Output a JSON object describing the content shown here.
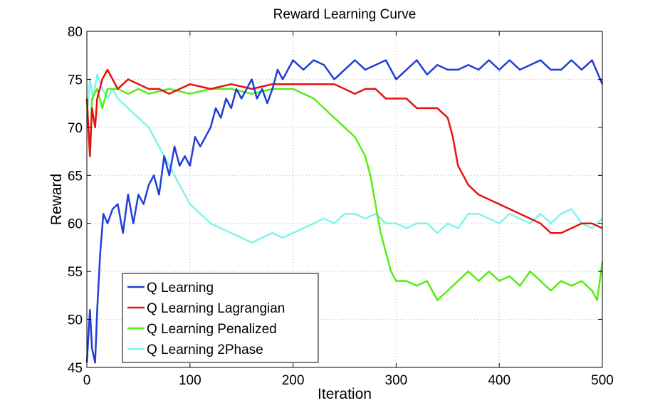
{
  "chart_data": {
    "type": "line",
    "title": "Reward Learning Curve",
    "xlabel": "Iteration",
    "ylabel": "Reward",
    "xlim": [
      0,
      500
    ],
    "ylim": [
      45,
      80
    ],
    "xticks": [
      0,
      100,
      200,
      300,
      400,
      500
    ],
    "yticks": [
      45,
      50,
      55,
      60,
      65,
      70,
      75,
      80
    ],
    "grid": true,
    "legend_position": "bottom-left",
    "series": [
      {
        "name": "Q Learning",
        "color": "#1f3fd6",
        "x": [
          0,
          3,
          5,
          8,
          10,
          13,
          16,
          20,
          25,
          30,
          35,
          40,
          45,
          50,
          55,
          60,
          65,
          70,
          75,
          80,
          85,
          90,
          95,
          100,
          105,
          110,
          115,
          120,
          125,
          130,
          135,
          140,
          145,
          150,
          155,
          160,
          165,
          170,
          175,
          180,
          185,
          190,
          195,
          200,
          210,
          220,
          230,
          240,
          250,
          260,
          270,
          280,
          290,
          300,
          310,
          320,
          330,
          340,
          350,
          360,
          370,
          380,
          390,
          400,
          410,
          420,
          430,
          440,
          450,
          460,
          470,
          480,
          490,
          500
        ],
        "y": [
          45.5,
          51,
          47,
          45.5,
          51,
          57,
          61,
          60,
          61.5,
          62,
          59,
          63,
          60,
          63,
          62,
          64,
          65,
          63,
          67,
          65,
          68,
          66,
          67,
          66,
          69,
          68,
          69,
          70,
          72,
          71,
          73,
          72,
          74,
          73,
          74,
          75,
          73,
          74,
          72.5,
          74,
          76,
          75,
          76,
          77,
          76,
          77,
          76.5,
          75,
          76,
          77,
          76,
          76.5,
          77,
          75,
          76,
          77,
          75.5,
          76.5,
          76,
          76,
          76.5,
          76,
          77,
          76,
          77,
          76,
          76.5,
          77,
          76,
          76,
          77,
          76,
          77,
          74.5
        ]
      },
      {
        "name": "Q Learning Lagrangian",
        "color": "#e81111",
        "x": [
          0,
          3,
          5,
          8,
          10,
          15,
          20,
          25,
          30,
          40,
          50,
          60,
          70,
          80,
          90,
          100,
          120,
          140,
          160,
          180,
          200,
          220,
          240,
          250,
          260,
          270,
          280,
          290,
          300,
          310,
          320,
          330,
          340,
          350,
          355,
          360,
          370,
          380,
          390,
          400,
          410,
          420,
          430,
          440,
          450,
          460,
          470,
          480,
          490,
          500
        ],
        "y": [
          73,
          67,
          72,
          70,
          73,
          75,
          76,
          75,
          74,
          75,
          74.5,
          74,
          74,
          73.5,
          74,
          74.5,
          74,
          74.5,
          74,
          74.5,
          74.5,
          74.5,
          74.5,
          74,
          73.5,
          74,
          74,
          73,
          73,
          73,
          72,
          72,
          72,
          71,
          69,
          66,
          64,
          63,
          62.5,
          62,
          61.5,
          61,
          60.5,
          60,
          59,
          59,
          59.5,
          60,
          60,
          59.5
        ]
      },
      {
        "name": "Q Learning Penalized",
        "color": "#55ee11",
        "x": [
          0,
          3,
          5,
          10,
          15,
          20,
          30,
          40,
          50,
          60,
          80,
          100,
          120,
          140,
          160,
          180,
          200,
          220,
          230,
          240,
          250,
          260,
          270,
          275,
          280,
          285,
          290,
          295,
          300,
          310,
          320,
          330,
          340,
          350,
          360,
          370,
          380,
          390,
          400,
          410,
          420,
          430,
          440,
          450,
          460,
          470,
          480,
          490,
          495,
          500
        ],
        "y": [
          73,
          67,
          73,
          74,
          72,
          74,
          74,
          73.5,
          74,
          73.5,
          74,
          73.5,
          74,
          74,
          73.5,
          74,
          74,
          73,
          72,
          71,
          70,
          69,
          67,
          65,
          62,
          59,
          57,
          55,
          54,
          54,
          53.5,
          54,
          52,
          53,
          54,
          55,
          54,
          55,
          54,
          54.5,
          53.5,
          55,
          54,
          53,
          54,
          53.5,
          54,
          53,
          52,
          56
        ]
      },
      {
        "name": "Q Learning 2Phase",
        "color": "#7ff5e8",
        "x": [
          0,
          3,
          6,
          10,
          15,
          20,
          25,
          30,
          40,
          50,
          60,
          70,
          80,
          90,
          100,
          110,
          120,
          130,
          140,
          150,
          160,
          170,
          180,
          190,
          200,
          210,
          220,
          230,
          240,
          250,
          260,
          270,
          280,
          290,
          300,
          310,
          320,
          330,
          340,
          350,
          360,
          370,
          380,
          390,
          400,
          410,
          420,
          430,
          440,
          450,
          460,
          470,
          480,
          490,
          500
        ],
        "y": [
          71,
          75,
          73,
          75.5,
          74,
          73,
          74,
          73,
          72,
          71,
          70,
          68,
          66,
          64,
          62,
          61,
          60,
          59.5,
          59,
          58.5,
          58,
          58.5,
          59,
          58.5,
          59,
          59.5,
          60,
          60.5,
          60,
          61,
          61,
          60.5,
          61,
          60,
          60,
          59.5,
          60,
          60,
          59,
          60,
          59.5,
          61,
          61,
          60.5,
          60,
          61,
          60.5,
          60,
          61,
          60,
          61,
          61.5,
          60,
          59.5,
          60.5
        ]
      }
    ]
  }
}
